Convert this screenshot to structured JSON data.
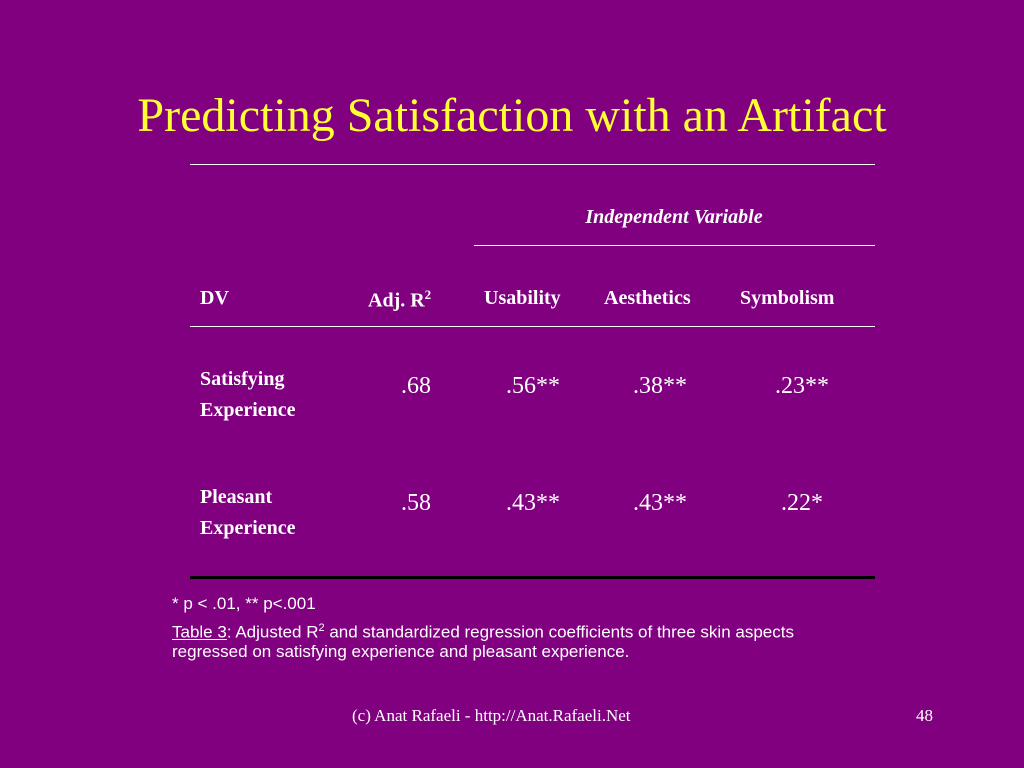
{
  "slide": {
    "title": "Predicting Satisfaction with an Artifact",
    "background_color": "#800080",
    "title_color": "#ffff33"
  },
  "table": {
    "group_header": "Independent Variable",
    "columns": {
      "dv": "DV",
      "adj_r_base": "Adj. R",
      "adj_r_sup": "2",
      "usability": "Usability",
      "aesthetics": "Aesthetics",
      "symbolism": "Symbolism"
    },
    "rows": [
      {
        "dv_line1": "Satisfying",
        "dv_line2": "Experience",
        "adj_r2": ".68",
        "usability": ".56**",
        "aesthetics": ".38**",
        "symbolism": ".23**"
      },
      {
        "dv_line1": "Pleasant",
        "dv_line2": "Experience",
        "adj_r2": ".58",
        "usability": ".43**",
        "aesthetics": ".43**",
        "symbolism": ".22*"
      }
    ]
  },
  "notes": {
    "significance": "* p < .01, ** p<.001",
    "caption_label": "Table 3",
    "caption_part1": ":  Adjusted R",
    "caption_sup": "2",
    "caption_part2": " and standardized regression coefficients of three skin aspects",
    "caption_line2": "regressed on satisfying experience and pleasant experience."
  },
  "footer": {
    "credit": "(c) Anat Rafaeli - http://Anat.Rafaeli.Net",
    "page_number": "48"
  }
}
